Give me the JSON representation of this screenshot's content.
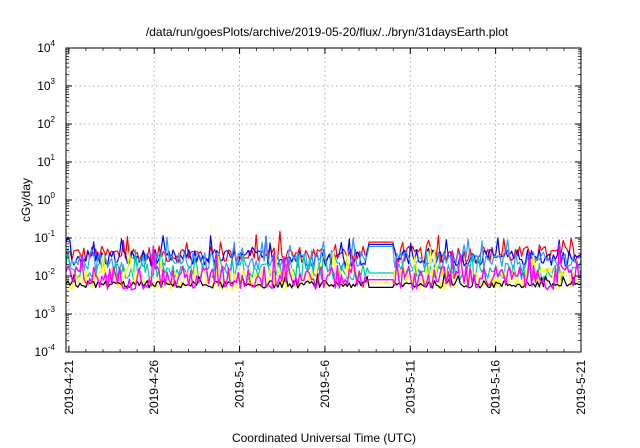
{
  "chart_data": {
    "type": "line",
    "title": "/data/run/goesPlots/archive/2019-05-20/flux/../bryn/31daysEarth.plot",
    "xlabel": "Coordinated Universal Time (UTC)",
    "ylabel": "cGy/day",
    "y_scale": "log",
    "ylim": [
      0.0001,
      10000
    ],
    "y_ticks": [
      {
        "base": "10",
        "exp": "4",
        "value": 10000
      },
      {
        "base": "10",
        "exp": "3",
        "value": 1000
      },
      {
        "base": "10",
        "exp": "2",
        "value": 100
      },
      {
        "base": "10",
        "exp": "1",
        "value": 10
      },
      {
        "base": "10",
        "exp": "0",
        "value": 1
      },
      {
        "base": "10",
        "exp": "-1",
        "value": 0.1
      },
      {
        "base": "10",
        "exp": "-2",
        "value": 0.01
      },
      {
        "base": "10",
        "exp": "-3",
        "value": 0.001
      },
      {
        "base": "10",
        "exp": "-4",
        "value": 0.0001
      }
    ],
    "xlim": [
      "2019-04-20T20:00",
      "2019-05-21T00:00"
    ],
    "x_ticks": [
      "2019-4-21",
      "2019-4-26",
      "2019-5-1",
      "2019-5-6",
      "2019-5-11",
      "2019-5-16",
      "2019-5-21"
    ],
    "grid": true,
    "series": [
      {
        "color": "#ff0000",
        "base": 0.037,
        "spread": 0.22,
        "plateau": 0.078
      },
      {
        "color": "#0000ff",
        "base": 0.03,
        "spread": 0.22,
        "plateau": 0.068
      },
      {
        "color": "#3399ff",
        "base": 0.024,
        "spread": 0.25,
        "plateau": 0.06
      },
      {
        "color": "#00c8a0",
        "base": 0.013,
        "spread": 0.22,
        "plateau": 0.012
      },
      {
        "color": "#ffff00",
        "base": 0.0085,
        "spread": 0.3,
        "plateau": 0.0065
      },
      {
        "color": "#000000",
        "base": 0.006,
        "spread": 0.1,
        "plateau": 0.005
      },
      {
        "color": "#ff00ff",
        "base": 0.009,
        "spread": 0.32,
        "plateau": 0.008
      }
    ],
    "plateau_dates": [
      "2019-05-08T12:00",
      "2019-05-10T00:00"
    ]
  }
}
